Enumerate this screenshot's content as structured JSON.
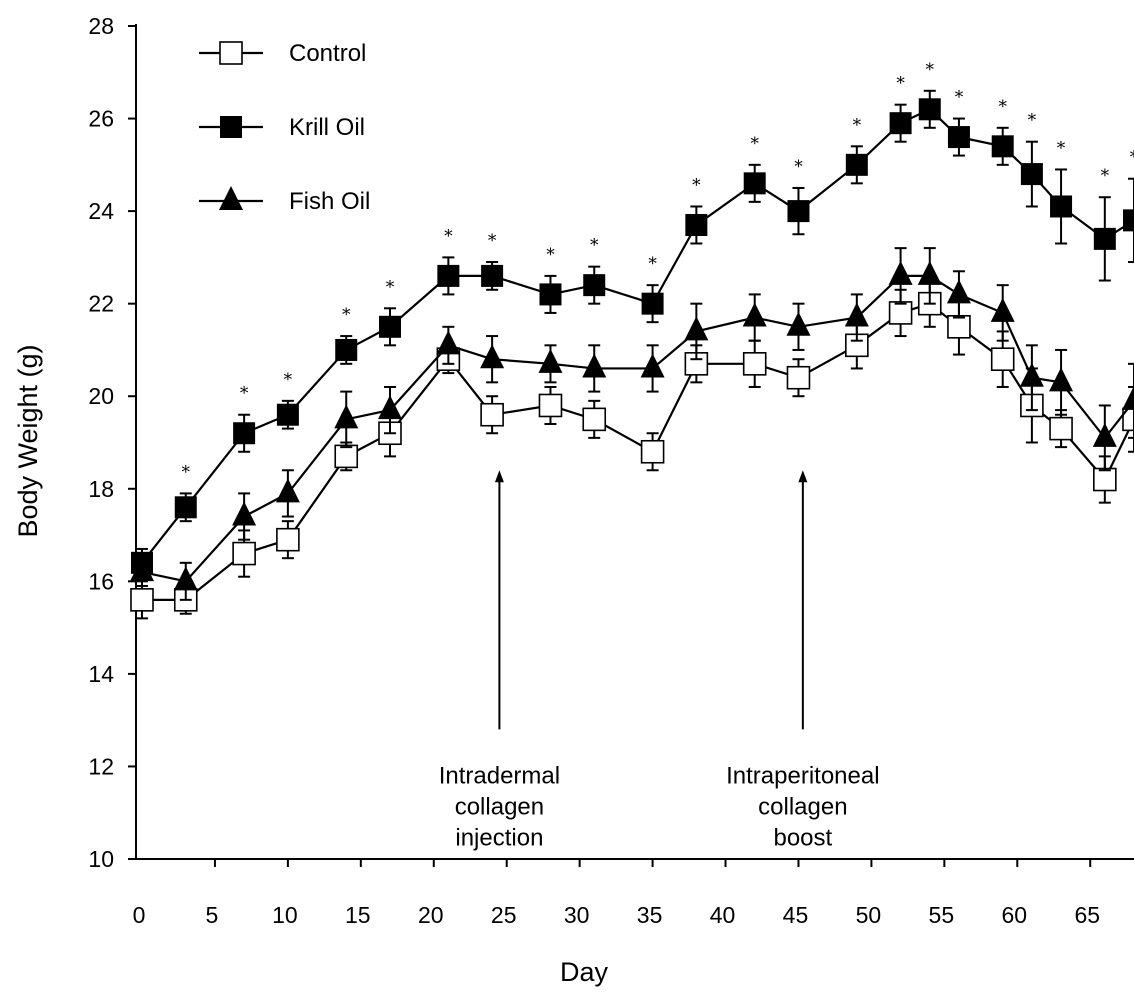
{
  "chart_data": {
    "type": "line",
    "xlabel": "Day",
    "ylabel": "Body Weight (g)",
    "xlim": [
      0,
      68
    ],
    "ylim": [
      10,
      28
    ],
    "xticks": [
      "0",
      "5",
      "10",
      "15",
      "20",
      "25",
      "30",
      "35",
      "40",
      "45",
      "50",
      "55",
      "60",
      "65"
    ],
    "yticks": [
      "10",
      "12",
      "14",
      "16",
      "18",
      "20",
      "22",
      "24",
      "26",
      "28"
    ],
    "legend_position": "top-left",
    "grid": false,
    "significance_mark": "*",
    "series": [
      {
        "name": "Control",
        "marker": "open-square",
        "x": [
          0,
          3,
          7,
          10,
          14,
          17,
          21,
          24,
          28,
          31,
          35,
          38,
          42,
          45,
          49,
          52,
          54,
          56,
          59,
          61,
          63,
          66,
          68
        ],
        "y": [
          15.6,
          15.6,
          16.6,
          16.9,
          18.7,
          19.2,
          20.8,
          19.6,
          19.8,
          19.5,
          18.8,
          20.7,
          20.7,
          20.4,
          21.1,
          21.8,
          22.0,
          21.5,
          20.8,
          19.8,
          19.3,
          18.2,
          19.5
        ],
        "err": [
          0.4,
          0.3,
          0.5,
          0.4,
          0.3,
          0.5,
          0.3,
          0.4,
          0.4,
          0.4,
          0.4,
          0.4,
          0.5,
          0.4,
          0.5,
          0.5,
          0.5,
          0.6,
          0.6,
          0.8,
          0.4,
          0.5,
          0.7
        ]
      },
      {
        "name": "Krill Oil",
        "marker": "filled-square",
        "x": [
          0,
          3,
          7,
          10,
          14,
          17,
          21,
          24,
          28,
          31,
          35,
          38,
          42,
          45,
          49,
          52,
          54,
          56,
          59,
          61,
          63,
          66,
          68
        ],
        "y": [
          16.4,
          17.6,
          19.2,
          19.6,
          21.0,
          21.5,
          22.6,
          22.6,
          22.2,
          22.4,
          22.0,
          23.7,
          24.6,
          24.0,
          25.0,
          25.9,
          26.2,
          25.6,
          25.4,
          24.8,
          24.1,
          23.4,
          23.8
        ],
        "err": [
          0.3,
          0.3,
          0.4,
          0.3,
          0.3,
          0.4,
          0.4,
          0.3,
          0.4,
          0.4,
          0.4,
          0.4,
          0.4,
          0.5,
          0.4,
          0.4,
          0.4,
          0.4,
          0.4,
          0.7,
          0.8,
          0.9,
          0.9
        ],
        "significant": [
          false,
          true,
          true,
          true,
          true,
          true,
          true,
          true,
          true,
          true,
          true,
          true,
          true,
          true,
          true,
          true,
          true,
          true,
          true,
          true,
          true,
          true,
          true
        ]
      },
      {
        "name": "Fish Oil",
        "marker": "filled-triangle",
        "x": [
          0,
          3,
          7,
          10,
          14,
          17,
          21,
          24,
          28,
          31,
          35,
          38,
          42,
          45,
          49,
          52,
          54,
          56,
          59,
          61,
          63,
          66,
          68
        ],
        "y": [
          16.2,
          16.0,
          17.4,
          17.9,
          19.5,
          19.7,
          21.1,
          20.8,
          20.7,
          20.6,
          20.6,
          21.4,
          21.7,
          21.5,
          21.7,
          22.6,
          22.6,
          22.2,
          21.8,
          20.4,
          20.3,
          19.1,
          19.9
        ],
        "err": [
          0.3,
          0.4,
          0.5,
          0.5,
          0.6,
          0.5,
          0.4,
          0.5,
          0.4,
          0.5,
          0.5,
          0.6,
          0.5,
          0.5,
          0.5,
          0.6,
          0.6,
          0.5,
          0.6,
          0.7,
          0.7,
          0.7,
          0.8
        ]
      }
    ],
    "annotations": [
      {
        "label": "injection",
        "lines": [
          "Intradermal",
          "collagen",
          "injection"
        ],
        "x": 24.5,
        "arrow_from_y": 12.8,
        "arrow_to_y": 18.4
      },
      {
        "label": "boost",
        "lines": [
          "Intraperitoneal",
          "collagen",
          "boost"
        ],
        "x": 45.3,
        "arrow_from_y": 12.8,
        "arrow_to_y": 18.4
      }
    ]
  }
}
